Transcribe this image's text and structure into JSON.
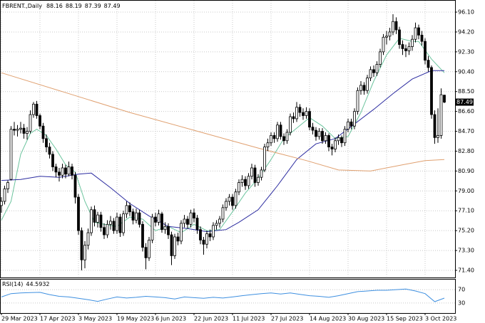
{
  "chart_data": {
    "type": "candlestick",
    "symbol": "FBRENT.,Daily",
    "header_values": [
      88.16,
      88.19,
      87.39,
      87.49
    ],
    "current_price": 87.49,
    "grid": true,
    "ylim": [
      70.72,
      97.19
    ],
    "yticks": [
      {
        "value": 96.1,
        "label": "96.10"
      },
      {
        "value": 94.2,
        "label": "94.20"
      },
      {
        "value": 92.3,
        "label": "92.30"
      },
      {
        "value": 90.4,
        "label": "90.40"
      },
      {
        "value": 88.5,
        "label": "88.50"
      },
      {
        "value": 86.6,
        "label": "86.60"
      },
      {
        "value": 84.7,
        "label": "84.70"
      },
      {
        "value": 82.8,
        "label": "82.80"
      },
      {
        "value": 80.9,
        "label": "80.90"
      },
      {
        "value": 79.0,
        "label": "79.00"
      },
      {
        "value": 77.1,
        "label": "77.10"
      },
      {
        "value": 75.2,
        "label": "75.20"
      },
      {
        "value": 73.3,
        "label": "73.30"
      },
      {
        "value": 71.4,
        "label": "71.40"
      }
    ],
    "categories": [
      "29 Mar 2023",
      null,
      null,
      null,
      null,
      null,
      null,
      null,
      null,
      null,
      null,
      null,
      "17 Apr 2023",
      null,
      null,
      null,
      null,
      null,
      null,
      null,
      null,
      null,
      null,
      null,
      "3 May 2023",
      null,
      null,
      null,
      null,
      null,
      null,
      null,
      null,
      null,
      null,
      null,
      "19 May 2023",
      null,
      null,
      null,
      null,
      null,
      null,
      null,
      null,
      null,
      null,
      null,
      "6 Jun 2023",
      null,
      null,
      null,
      null,
      null,
      null,
      null,
      null,
      null,
      null,
      null,
      "22 Jun 2023",
      null,
      null,
      null,
      null,
      null,
      null,
      null,
      null,
      null,
      null,
      null,
      "11 Jul 2023",
      null,
      null,
      null,
      null,
      null,
      null,
      null,
      null,
      null,
      null,
      null,
      "27 Jul 2023",
      null,
      null,
      null,
      null,
      null,
      null,
      null,
      null,
      null,
      null,
      null,
      "14 Aug 2023",
      null,
      null,
      null,
      null,
      null,
      null,
      null,
      null,
      null,
      null,
      null,
      "30 Aug 2023",
      null,
      null,
      null,
      null,
      null,
      null,
      null,
      null,
      null,
      null,
      null,
      "15 Sep 2023",
      null,
      null,
      null,
      null,
      null,
      null,
      null,
      null,
      null,
      null,
      null,
      "3 Oct 2023",
      null,
      null,
      null,
      null,
      null,
      null
    ],
    "ohlc": [
      [
        77.6,
        78.4,
        76.9,
        78.0
      ],
      [
        78.0,
        79.5,
        77.7,
        79.2
      ],
      [
        79.2,
        80.0,
        78.8,
        79.8
      ],
      [
        80.1,
        85.2,
        80.0,
        84.9
      ],
      [
        84.9,
        85.6,
        84.3,
        84.8
      ],
      [
        84.8,
        85.3,
        84.2,
        84.9
      ],
      [
        84.9,
        85.6,
        84.5,
        85.0
      ],
      [
        85.0,
        85.4,
        84.0,
        84.5
      ],
      [
        84.5,
        85.1,
        83.9,
        84.7
      ],
      [
        84.7,
        86.7,
        84.5,
        86.3
      ],
      [
        86.3,
        87.5,
        86.0,
        87.3
      ],
      [
        87.3,
        87.6,
        85.9,
        86.2
      ],
      [
        86.2,
        86.4,
        84.9,
        85.2
      ],
      [
        85.2,
        85.5,
        83.6,
        84.0
      ],
      [
        84.0,
        84.4,
        82.7,
        83.2
      ],
      [
        83.2,
        83.6,
        82.1,
        82.5
      ],
      [
        82.5,
        82.8,
        80.9,
        81.3
      ],
      [
        81.3,
        81.6,
        80.3,
        80.8
      ],
      [
        80.8,
        81.2,
        79.9,
        80.5
      ],
      [
        80.5,
        81.6,
        80.2,
        81.2
      ],
      [
        81.2,
        81.5,
        80.2,
        80.6
      ],
      [
        80.6,
        81.8,
        80.4,
        81.3
      ],
      [
        81.3,
        81.6,
        80.1,
        80.5
      ],
      [
        80.5,
        80.8,
        77.8,
        78.4
      ],
      [
        78.4,
        78.7,
        74.8,
        75.2
      ],
      [
        75.2,
        75.5,
        71.4,
        72.4
      ],
      [
        72.4,
        74.2,
        71.6,
        73.8
      ],
      [
        73.8,
        75.4,
        73.4,
        75.0
      ],
      [
        75.0,
        77.5,
        74.7,
        77.2
      ],
      [
        77.2,
        77.6,
        75.6,
        76.0
      ],
      [
        76.0,
        77.0,
        75.5,
        76.7
      ],
      [
        76.7,
        77.0,
        75.1,
        75.5
      ],
      [
        75.5,
        75.9,
        74.4,
        74.8
      ],
      [
        74.8,
        76.2,
        74.5,
        75.8
      ],
      [
        75.8,
        76.6,
        75.3,
        76.1
      ],
      [
        76.1,
        76.4,
        74.9,
        75.2
      ],
      [
        75.2,
        76.9,
        74.9,
        76.5
      ],
      [
        76.5,
        76.8,
        74.6,
        75.0
      ],
      [
        75.0,
        77.1,
        74.7,
        76.8
      ],
      [
        76.8,
        78.0,
        76.4,
        77.6
      ],
      [
        77.6,
        77.9,
        76.6,
        77.0
      ],
      [
        77.0,
        77.3,
        75.8,
        76.2
      ],
      [
        76.2,
        77.3,
        75.9,
        76.9
      ],
      [
        76.9,
        77.2,
        75.5,
        75.8
      ],
      [
        75.8,
        76.1,
        73.2,
        73.6
      ],
      [
        73.6,
        74.0,
        71.5,
        72.6
      ],
      [
        72.6,
        74.6,
        72.3,
        74.3
      ],
      [
        74.3,
        76.8,
        74.0,
        76.5
      ],
      [
        76.5,
        76.9,
        75.6,
        76.0
      ],
      [
        76.0,
        77.2,
        75.7,
        76.8
      ],
      [
        76.8,
        77.0,
        75.0,
        75.3
      ],
      [
        75.3,
        76.0,
        74.9,
        75.6
      ],
      [
        75.6,
        75.9,
        74.4,
        74.8
      ],
      [
        74.8,
        75.1,
        71.9,
        72.8
      ],
      [
        72.8,
        74.9,
        72.5,
        74.6
      ],
      [
        74.6,
        75.0,
        73.8,
        74.2
      ],
      [
        74.2,
        76.2,
        73.9,
        75.9
      ],
      [
        75.9,
        76.7,
        75.5,
        76.3
      ],
      [
        76.3,
        76.6,
        75.4,
        75.8
      ],
      [
        75.8,
        77.2,
        75.5,
        76.9
      ],
      [
        76.9,
        77.3,
        76.0,
        76.4
      ],
      [
        76.4,
        76.7,
        74.9,
        75.3
      ],
      [
        75.3,
        75.6,
        73.9,
        74.3
      ],
      [
        74.3,
        74.6,
        72.9,
        73.9
      ],
      [
        73.9,
        75.2,
        73.5,
        74.9
      ],
      [
        74.9,
        75.3,
        74.2,
        74.6
      ],
      [
        74.6,
        76.0,
        74.3,
        75.7
      ],
      [
        75.7,
        76.2,
        75.3,
        75.9
      ],
      [
        75.9,
        76.6,
        75.5,
        76.3
      ],
      [
        76.3,
        77.7,
        76.0,
        77.4
      ],
      [
        77.4,
        78.3,
        77.1,
        78.0
      ],
      [
        78.0,
        78.7,
        77.6,
        78.4
      ],
      [
        78.4,
        78.7,
        77.2,
        77.6
      ],
      [
        77.6,
        79.2,
        77.3,
        78.9
      ],
      [
        78.9,
        80.1,
        78.6,
        79.8
      ],
      [
        79.8,
        80.5,
        79.4,
        80.1
      ],
      [
        80.1,
        80.4,
        79.1,
        79.5
      ],
      [
        79.5,
        80.7,
        79.2,
        80.4
      ],
      [
        80.4,
        81.6,
        80.1,
        81.2
      ],
      [
        81.2,
        81.5,
        79.4,
        79.8
      ],
      [
        79.8,
        80.6,
        79.5,
        80.3
      ],
      [
        80.3,
        81.3,
        80.0,
        81.0
      ],
      [
        81.0,
        83.5,
        80.8,
        83.2
      ],
      [
        83.2,
        84.0,
        82.8,
        83.6
      ],
      [
        83.6,
        84.6,
        83.3,
        84.3
      ],
      [
        84.3,
        84.6,
        83.6,
        84.0
      ],
      [
        84.0,
        85.6,
        83.7,
        85.3
      ],
      [
        85.3,
        85.6,
        83.9,
        84.2
      ],
      [
        84.2,
        84.5,
        83.4,
        83.8
      ],
      [
        83.8,
        84.9,
        83.5,
        84.6
      ],
      [
        84.6,
        86.4,
        84.3,
        86.1
      ],
      [
        86.1,
        86.5,
        85.5,
        85.9
      ],
      [
        85.9,
        87.5,
        85.6,
        87.0
      ],
      [
        87.0,
        87.3,
        86.1,
        86.5
      ],
      [
        86.5,
        86.9,
        85.8,
        86.2
      ],
      [
        86.2,
        87.0,
        85.9,
        86.6
      ],
      [
        86.6,
        86.9,
        84.8,
        85.1
      ],
      [
        85.1,
        85.5,
        84.4,
        84.8
      ],
      [
        84.8,
        85.1,
        83.8,
        84.2
      ],
      [
        84.2,
        85.0,
        83.9,
        84.7
      ],
      [
        84.7,
        85.0,
        83.5,
        83.8
      ],
      [
        83.8,
        84.6,
        83.5,
        84.3
      ],
      [
        84.3,
        84.5,
        82.8,
        83.2
      ],
      [
        83.2,
        83.5,
        82.4,
        83.0
      ],
      [
        83.0,
        84.1,
        82.7,
        83.8
      ],
      [
        83.8,
        84.4,
        83.4,
        84.1
      ],
      [
        84.1,
        84.3,
        83.2,
        83.6
      ],
      [
        83.6,
        85.2,
        83.3,
        84.9
      ],
      [
        84.9,
        85.9,
        84.6,
        85.6
      ],
      [
        85.6,
        85.9,
        84.9,
        85.2
      ],
      [
        85.2,
        86.9,
        84.9,
        86.6
      ],
      [
        86.6,
        88.9,
        86.3,
        88.6
      ],
      [
        88.6,
        89.5,
        88.2,
        89.1
      ],
      [
        89.1,
        89.4,
        88.2,
        88.6
      ],
      [
        88.6,
        90.1,
        88.3,
        89.8
      ],
      [
        89.8,
        90.9,
        89.5,
        90.6
      ],
      [
        90.6,
        91.0,
        89.9,
        90.3
      ],
      [
        90.3,
        91.4,
        90.0,
        91.1
      ],
      [
        91.1,
        92.6,
        90.8,
        92.3
      ],
      [
        92.3,
        94.0,
        92.0,
        93.7
      ],
      [
        93.7,
        94.3,
        93.0,
        93.8
      ],
      [
        93.8,
        94.6,
        93.4,
        94.2
      ],
      [
        94.2,
        95.9,
        93.9,
        95.2
      ],
      [
        95.2,
        95.6,
        94.0,
        94.4
      ],
      [
        94.4,
        94.7,
        92.6,
        93.0
      ],
      [
        93.0,
        93.4,
        92.0,
        92.6
      ],
      [
        92.6,
        93.0,
        91.8,
        92.4
      ],
      [
        92.4,
        93.2,
        92.0,
        92.8
      ],
      [
        92.8,
        93.9,
        92.4,
        93.5
      ],
      [
        93.5,
        95.1,
        93.2,
        94.6
      ],
      [
        94.6,
        94.9,
        93.5,
        93.9
      ],
      [
        93.9,
        94.3,
        92.9,
        93.3
      ],
      [
        93.3,
        93.6,
        91.1,
        91.5
      ],
      [
        91.5,
        91.9,
        90.4,
        90.8
      ],
      [
        90.8,
        91.0,
        85.9,
        86.3
      ],
      [
        86.3,
        86.7,
        83.5,
        84.1
      ],
      [
        84.1,
        86.9,
        83.6,
        84.3
      ],
      [
        84.3,
        88.8,
        84.0,
        88.2
      ],
      [
        88.16,
        88.19,
        87.39,
        87.49
      ]
    ],
    "moving_averages": [
      {
        "color": "#6cc49e",
        "x": [
          0,
          3,
          6,
          9,
          11,
          14,
          17,
          20,
          23,
          26,
          29,
          32,
          36,
          40,
          44,
          48,
          52,
          56,
          60,
          64,
          68,
          72,
          76,
          80,
          84,
          88,
          92,
          96,
          100,
          104,
          108,
          112,
          116,
          120,
          124,
          128,
          130,
          134,
          138
        ],
        "values": [
          76.2,
          78.0,
          82.5,
          84.5,
          84.9,
          84.3,
          83.0,
          81.5,
          80.8,
          78.0,
          76.0,
          75.8,
          75.6,
          76.5,
          76.3,
          75.2,
          75.6,
          75.0,
          75.8,
          75.2,
          75.3,
          77.0,
          78.8,
          80.2,
          82.0,
          84.0,
          85.0,
          86.0,
          85.2,
          84.0,
          84.2,
          86.5,
          89.5,
          92.0,
          93.6,
          93.3,
          93.3,
          91.6,
          90.3
        ]
      },
      {
        "color": "#2c2ca0",
        "x": [
          0,
          6,
          12,
          18,
          24,
          28,
          34,
          40,
          46,
          52,
          58,
          64,
          70,
          74,
          80,
          86,
          92,
          98,
          104,
          110,
          116,
          122,
          128,
          134,
          138
        ],
        "values": [
          80.0,
          80.1,
          80.4,
          80.3,
          80.6,
          80.7,
          79.3,
          77.8,
          76.6,
          75.6,
          75.4,
          75.1,
          75.3,
          76.0,
          77.2,
          79.5,
          82.0,
          83.5,
          84.0,
          85.4,
          86.8,
          88.3,
          89.7,
          90.5,
          90.5
        ]
      },
      {
        "color": "#e0a070",
        "x": [
          0,
          20,
          40,
          60,
          80,
          95,
          105,
          115,
          125,
          132,
          138
        ],
        "values": [
          90.3,
          88.4,
          86.5,
          84.8,
          83.1,
          81.9,
          81.0,
          80.9,
          81.5,
          81.9,
          82.0
        ]
      }
    ],
    "rsi": {
      "name": "RSI(14)",
      "color": "#3d8fe0",
      "ylim": [
        0,
        100
      ],
      "yticks": [
        70,
        30
      ],
      "x": [
        0,
        3,
        6,
        9,
        12,
        15,
        18,
        21,
        24,
        27,
        30,
        33,
        36,
        39,
        42,
        45,
        48,
        51,
        54,
        57,
        60,
        63,
        66,
        69,
        72,
        75,
        78,
        81,
        84,
        87,
        90,
        93,
        96,
        99,
        102,
        105,
        108,
        111,
        114,
        117,
        120,
        123,
        126,
        129,
        132,
        135,
        138
      ],
      "values": [
        48,
        58,
        60,
        61,
        62,
        55,
        50,
        48,
        44,
        40,
        35,
        42,
        48,
        45,
        47,
        50,
        48,
        46,
        42,
        48,
        46,
        44,
        47,
        45,
        48,
        52,
        55,
        58,
        60,
        57,
        60,
        56,
        52,
        50,
        47,
        52,
        58,
        64,
        66,
        68,
        68,
        70,
        72,
        66,
        58,
        34,
        44.5932
      ]
    }
  }
}
